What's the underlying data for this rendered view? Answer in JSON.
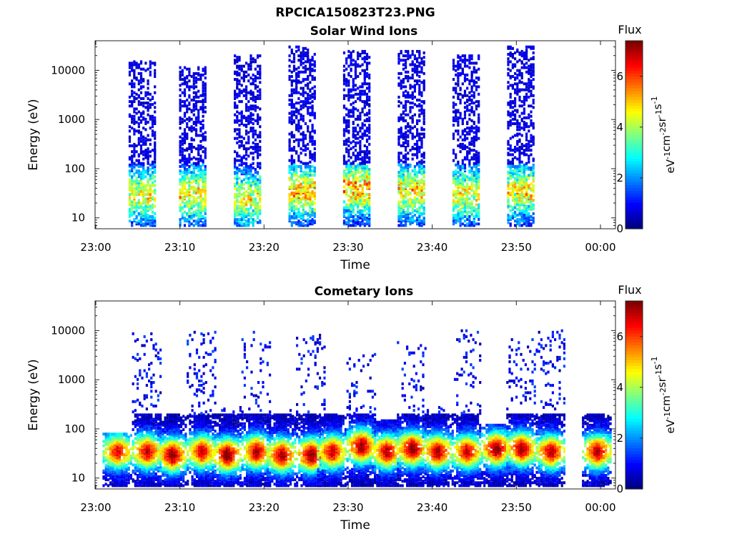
{
  "figure": {
    "title": "RPCICA150823T23.PNG"
  },
  "chart_data": [
    {
      "type": "heatmap",
      "title": "Solar Wind Ions",
      "xlabel": "Time",
      "ylabel": "Energy (eV)",
      "x_ticks": [
        "23:00",
        "23:10",
        "23:20",
        "23:30",
        "23:40",
        "23:50",
        "00:00"
      ],
      "y_ticks": [
        "10",
        "100",
        "1000",
        "10000"
      ],
      "y_scale": "log",
      "ylim": [
        6,
        40000
      ],
      "xlim": [
        "23:00",
        "00:00"
      ],
      "colorbar": {
        "label": "Flux",
        "units": "eV-1cm-2sr-1s-1",
        "range": [
          0,
          7.4
        ],
        "ticks": [
          "0",
          "2",
          "4",
          "6"
        ],
        "colormap": "jet"
      },
      "bursts": [
        {
          "time": "23:05.5",
          "energy_max": 15000,
          "core_energy": 30,
          "peak_flux": 4.5
        },
        {
          "time": "23:11.5",
          "energy_max": 12000,
          "core_energy": 30,
          "peak_flux": 4.8
        },
        {
          "time": "23:18.0",
          "energy_max": 20000,
          "core_energy": 25,
          "peak_flux": 4.5
        },
        {
          "time": "23:24.5",
          "energy_max": 30000,
          "core_energy": 35,
          "peak_flux": 5.2
        },
        {
          "time": "23:31.0",
          "energy_max": 25000,
          "core_energy": 40,
          "peak_flux": 5.3
        },
        {
          "time": "23:37.5",
          "energy_max": 25000,
          "core_energy": 35,
          "peak_flux": 5.0
        },
        {
          "time": "23:44.0",
          "energy_max": 20000,
          "core_energy": 30,
          "peak_flux": 4.6
        },
        {
          "time": "23:50.5",
          "energy_max": 30000,
          "core_energy": 35,
          "peak_flux": 4.7
        }
      ]
    },
    {
      "type": "heatmap",
      "title": "Cometary Ions",
      "xlabel": "Time",
      "ylabel": "Energy (eV)",
      "x_ticks": [
        "23:00",
        "23:10",
        "23:20",
        "23:30",
        "23:40",
        "23:50",
        "00:00"
      ],
      "y_ticks": [
        "10",
        "100",
        "1000",
        "10000"
      ],
      "y_scale": "log",
      "ylim": [
        6,
        40000
      ],
      "xlim": [
        "23:00",
        "00:00"
      ],
      "colorbar": {
        "label": "Flux",
        "units": "eV-1cm-2sr-1s-1",
        "range": [
          0,
          7.4
        ],
        "ticks": [
          "0",
          "2",
          "4",
          "6"
        ],
        "colormap": "jet"
      },
      "bursts": [
        {
          "time": "23:02.5",
          "energy_max": 80,
          "core_energy": 35,
          "peak_flux": 6.5
        },
        {
          "time": "23:06.0",
          "energy_max": 10000,
          "core_energy": 35,
          "peak_flux": 6.8
        },
        {
          "time": "23:09.0",
          "energy_max": 200,
          "core_energy": 30,
          "peak_flux": 7.2
        },
        {
          "time": "23:12.5",
          "energy_max": 10000,
          "core_energy": 35,
          "peak_flux": 6.6
        },
        {
          "time": "23:15.5",
          "energy_max": 300,
          "core_energy": 30,
          "peak_flux": 7.3
        },
        {
          "time": "23:19.0",
          "energy_max": 10000,
          "core_energy": 35,
          "peak_flux": 6.9
        },
        {
          "time": "23:22.0",
          "energy_max": 250,
          "core_energy": 30,
          "peak_flux": 7.0
        },
        {
          "time": "23:25.5",
          "energy_max": 10000,
          "core_energy": 30,
          "peak_flux": 7.3
        },
        {
          "time": "23:28.0",
          "energy_max": 200,
          "core_energy": 35,
          "peak_flux": 6.7
        },
        {
          "time": "23:31.5",
          "energy_max": 5000,
          "core_energy": 45,
          "peak_flux": 7.2
        },
        {
          "time": "23:34.5",
          "energy_max": 150,
          "core_energy": 35,
          "peak_flux": 6.9
        },
        {
          "time": "23:37.5",
          "energy_max": 6000,
          "core_energy": 40,
          "peak_flux": 7.3
        },
        {
          "time": "23:40.5",
          "energy_max": 300,
          "core_energy": 35,
          "peak_flux": 7.0
        },
        {
          "time": "23:44.0",
          "energy_max": 10000,
          "core_energy": 35,
          "peak_flux": 6.7
        },
        {
          "time": "23:47.5",
          "energy_max": 120,
          "core_energy": 40,
          "peak_flux": 7.2
        },
        {
          "time": "23:50.5",
          "energy_max": 8000,
          "core_energy": 40,
          "peak_flux": 7.1
        },
        {
          "time": "23:54.0",
          "energy_max": 10000,
          "core_energy": 35,
          "peak_flux": 6.8
        },
        {
          "time": "23:59.5",
          "energy_max": 200,
          "core_energy": 35,
          "peak_flux": 6.9
        }
      ]
    }
  ]
}
